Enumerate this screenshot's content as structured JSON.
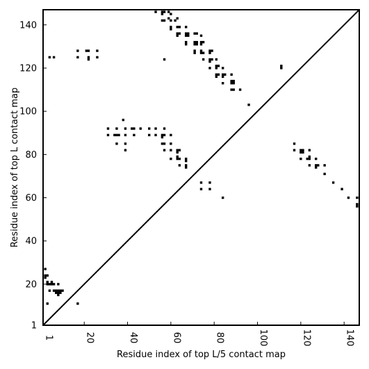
{
  "chart_data": {
    "type": "scatter",
    "xlabel": "Residue index of top L/5 contact map",
    "ylabel": "Residue index of top L contact map",
    "xlim": [
      1,
      147
    ],
    "ylim": [
      1,
      147
    ],
    "xticks": [
      1,
      20,
      40,
      60,
      80,
      100,
      120,
      140
    ],
    "yticks": [
      1,
      20,
      40,
      60,
      80,
      100,
      120,
      140
    ],
    "diagonal": true,
    "marker": "square",
    "color": "#000000",
    "points": [
      [
        2,
        27
      ],
      [
        2,
        24
      ],
      [
        2,
        23
      ],
      [
        3,
        24
      ],
      [
        3,
        21
      ],
      [
        3,
        20
      ],
      [
        3,
        11
      ],
      [
        4,
        20
      ],
      [
        4,
        17
      ],
      [
        5,
        21
      ],
      [
        5,
        20
      ],
      [
        6,
        20
      ],
      [
        6,
        17
      ],
      [
        7,
        17
      ],
      [
        7,
        16
      ],
      [
        8,
        20
      ],
      [
        8,
        17
      ],
      [
        8,
        16
      ],
      [
        8,
        15
      ],
      [
        9,
        17
      ],
      [
        9,
        16
      ],
      [
        10,
        17
      ],
      [
        17,
        11
      ],
      [
        4,
        125
      ],
      [
        6,
        125
      ],
      [
        17,
        128
      ],
      [
        17,
        125
      ],
      [
        21,
        128
      ],
      [
        22,
        128
      ],
      [
        22,
        125
      ],
      [
        22,
        124
      ],
      [
        26,
        128
      ],
      [
        26,
        125
      ],
      [
        53,
        146
      ],
      [
        56,
        146
      ],
      [
        56,
        145
      ],
      [
        57,
        146
      ],
      [
        57,
        142
      ],
      [
        56,
        142
      ],
      [
        59,
        146
      ],
      [
        60,
        145
      ],
      [
        59,
        143
      ],
      [
        60,
        142
      ],
      [
        63,
        143
      ],
      [
        62,
        142
      ],
      [
        60,
        139
      ],
      [
        60,
        138
      ],
      [
        63,
        139
      ],
      [
        64,
        139
      ],
      [
        63,
        136
      ],
      [
        64,
        136
      ],
      [
        63,
        135
      ],
      [
        67,
        139
      ],
      [
        67,
        136
      ],
      [
        68,
        136
      ],
      [
        67,
        135
      ],
      [
        68,
        135
      ],
      [
        67,
        132
      ],
      [
        67,
        131
      ],
      [
        71,
        136
      ],
      [
        72,
        136
      ],
      [
        71,
        132
      ],
      [
        72,
        132
      ],
      [
        71,
        131
      ],
      [
        72,
        131
      ],
      [
        71,
        128
      ],
      [
        71,
        127
      ],
      [
        74,
        135
      ],
      [
        74,
        132
      ],
      [
        74,
        131
      ],
      [
        75,
        132
      ],
      [
        74,
        128
      ],
      [
        74,
        127
      ],
      [
        75,
        127
      ],
      [
        75,
        124
      ],
      [
        78,
        128
      ],
      [
        79,
        128
      ],
      [
        78,
        127
      ],
      [
        78,
        124
      ],
      [
        79,
        124
      ],
      [
        78,
        123
      ],
      [
        78,
        120
      ],
      [
        81,
        124
      ],
      [
        81,
        121
      ],
      [
        82,
        121
      ],
      [
        81,
        120
      ],
      [
        81,
        117
      ],
      [
        82,
        117
      ],
      [
        81,
        116
      ],
      [
        84,
        120
      ],
      [
        84,
        117
      ],
      [
        85,
        117
      ],
      [
        84,
        116
      ],
      [
        84,
        113
      ],
      [
        88,
        117
      ],
      [
        88,
        114
      ],
      [
        89,
        114
      ],
      [
        88,
        113
      ],
      [
        89,
        113
      ],
      [
        88,
        110
      ],
      [
        89,
        110
      ],
      [
        92,
        110
      ],
      [
        96,
        103
      ],
      [
        111,
        121
      ],
      [
        111,
        120
      ],
      [
        57,
        124
      ],
      [
        31,
        92
      ],
      [
        35,
        92
      ],
      [
        31,
        89
      ],
      [
        34,
        89
      ],
      [
        35,
        89
      ],
      [
        36,
        89
      ],
      [
        35,
        85
      ],
      [
        38,
        96
      ],
      [
        39,
        92
      ],
      [
        42,
        92
      ],
      [
        43,
        92
      ],
      [
        39,
        89
      ],
      [
        43,
        89
      ],
      [
        39,
        85
      ],
      [
        39,
        82
      ],
      [
        46,
        92
      ],
      [
        50,
        92
      ],
      [
        53,
        92
      ],
      [
        50,
        89
      ],
      [
        53,
        89
      ],
      [
        57,
        92
      ],
      [
        56,
        89
      ],
      [
        57,
        89
      ],
      [
        56,
        88
      ],
      [
        60,
        89
      ],
      [
        56,
        85
      ],
      [
        57,
        85
      ],
      [
        60,
        85
      ],
      [
        57,
        82
      ],
      [
        60,
        82
      ],
      [
        63,
        82
      ],
      [
        64,
        82
      ],
      [
        63,
        81
      ],
      [
        60,
        78
      ],
      [
        63,
        79
      ],
      [
        63,
        78
      ],
      [
        64,
        78
      ],
      [
        67,
        78
      ],
      [
        67,
        77
      ],
      [
        64,
        75
      ],
      [
        67,
        75
      ],
      [
        67,
        74
      ],
      [
        74,
        67
      ],
      [
        78,
        67
      ],
      [
        74,
        64
      ],
      [
        78,
        64
      ],
      [
        84,
        60
      ],
      [
        117,
        85
      ],
      [
        117,
        82
      ],
      [
        120,
        82
      ],
      [
        121,
        82
      ],
      [
        124,
        82
      ],
      [
        120,
        81
      ],
      [
        121,
        81
      ],
      [
        120,
        78
      ],
      [
        123,
        78
      ],
      [
        124,
        78
      ],
      [
        124,
        79
      ],
      [
        127,
        78
      ],
      [
        124,
        75
      ],
      [
        127,
        75
      ],
      [
        128,
        75
      ],
      [
        127,
        74
      ],
      [
        131,
        75
      ],
      [
        131,
        71
      ],
      [
        135,
        67
      ],
      [
        139,
        64
      ],
      [
        142,
        60
      ],
      [
        146,
        60
      ],
      [
        146,
        57
      ],
      [
        146,
        56
      ]
    ]
  }
}
